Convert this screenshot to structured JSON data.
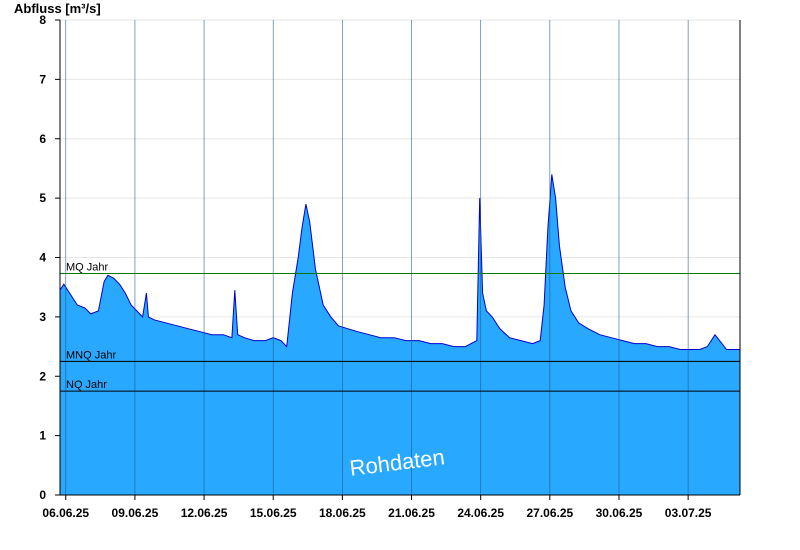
{
  "chart_data": {
    "type": "area",
    "title": "",
    "ylabel": "Abfluss [m³/s]",
    "xlabel": "",
    "ylim": [
      0,
      8
    ],
    "yticks": [
      "0",
      "1",
      "2",
      "3",
      "4",
      "5",
      "6",
      "7",
      "8"
    ],
    "x_ticks": [
      "06.06.25",
      "09.06.25",
      "12.06.25",
      "15.06.25",
      "18.06.25",
      "21.06.25",
      "24.06.25",
      "27.06.25",
      "30.06.25",
      "03.07.25"
    ],
    "x_start": "05.06.25 18:00",
    "x_end": "05.07.25 06:00",
    "grid": true,
    "reference_lines": [
      {
        "label": "MQ Jahr",
        "value": 3.73,
        "color": "#007700"
      },
      {
        "label": "MNQ Jahr",
        "value": 2.25,
        "color": "#000000"
      },
      {
        "label": "NQ Jahr",
        "value": 1.75,
        "color": "#000000"
      }
    ],
    "series": [
      {
        "fill_color": "#29a8ff",
        "line_color": "#0000cc",
        "x": [
          "05.06.25 18:00",
          "05.06.25 22:00",
          "06.06.25 04:00",
          "06.06.25 12:00",
          "06.06.25 20:00",
          "07.06.25 02:00",
          "07.06.25 10:00",
          "07.06.25 16:00",
          "07.06.25 20:00",
          "08.06.25 02:00",
          "08.06.25 08:00",
          "08.06.25 14:00",
          "08.06.25 20:00",
          "09.06.25 02:00",
          "09.06.25 08:00",
          "09.06.25 12:00",
          "09.06.25 14:00",
          "09.06.25 20:00",
          "10.06.25 08:00",
          "10.06.25 20:00",
          "11.06.25 08:00",
          "11.06.25 20:00",
          "12.06.25 08:00",
          "12.06.25 20:00",
          "13.06.25 05:00",
          "13.06.25 08:00",
          "13.06.25 11:00",
          "13.06.25 18:00",
          "14.06.25 04:00",
          "14.06.25 16:00",
          "15.06.25 00:00",
          "15.06.25 08:00",
          "15.06.25 14:00",
          "15.06.25 20:00",
          "16.06.25 02:00",
          "16.06.25 06:00",
          "16.06.25 10:00",
          "16.06.25 14:00",
          "16.06.25 20:00",
          "17.06.25 04:00",
          "17.06.25 12:00",
          "17.06.25 20:00",
          "18.06.25 06:00",
          "18.06.25 16:00",
          "19.06.25 04:00",
          "19.06.25 16:00",
          "20.06.25 06:00",
          "20.06.25 18:00",
          "21.06.25 08:00",
          "21.06.25 20:00",
          "22.06.25 08:00",
          "22.06.25 20:00",
          "23.06.25 08:00",
          "23.06.25 14:00",
          "23.06.25 20:00",
          "23.06.25 23:00",
          "24.06.25 02:00",
          "24.06.25 06:00",
          "24.06.25 12:00",
          "24.06.25 20:00",
          "25.06.25 06:00",
          "25.06.25 18:00",
          "26.06.25 06:00",
          "26.06.25 14:00",
          "26.06.25 18:00",
          "26.06.25 22:00",
          "27.06.25 02:00",
          "27.06.25 06:00",
          "27.06.25 10:00",
          "27.06.25 16:00",
          "27.06.25 22:00",
          "28.06.25 06:00",
          "28.06.25 16:00",
          "29.06.25 04:00",
          "29.06.25 16:00",
          "30.06.25 04:00",
          "30.06.25 16:00",
          "01.07.25 04:00",
          "01.07.25 16:00",
          "02.07.25 04:00",
          "02.07.25 16:00",
          "03.07.25 04:00",
          "03.07.25 12:00",
          "03.07.25 20:00",
          "04.07.25 04:00",
          "04.07.25 16:00",
          "05.07.25 06:00"
        ],
        "values": [
          3.45,
          3.55,
          3.4,
          3.2,
          3.15,
          3.05,
          3.1,
          3.6,
          3.7,
          3.65,
          3.55,
          3.4,
          3.2,
          3.1,
          3.0,
          3.4,
          3.0,
          2.95,
          2.9,
          2.85,
          2.8,
          2.75,
          2.7,
          2.7,
          2.65,
          3.45,
          2.7,
          2.65,
          2.6,
          2.6,
          2.65,
          2.6,
          2.5,
          3.4,
          4.0,
          4.5,
          4.9,
          4.6,
          3.8,
          3.2,
          3.0,
          2.85,
          2.8,
          2.75,
          2.7,
          2.65,
          2.65,
          2.6,
          2.6,
          2.55,
          2.55,
          2.5,
          2.5,
          2.55,
          2.6,
          5.0,
          3.4,
          3.1,
          3.0,
          2.8,
          2.65,
          2.6,
          2.55,
          2.6,
          3.2,
          4.5,
          5.4,
          5.0,
          4.2,
          3.5,
          3.1,
          2.9,
          2.8,
          2.7,
          2.65,
          2.6,
          2.55,
          2.55,
          2.5,
          2.5,
          2.45,
          2.45,
          2.45,
          2.5,
          2.7,
          2.45,
          2.45
        ]
      }
    ],
    "watermark": "Rohdaten"
  }
}
